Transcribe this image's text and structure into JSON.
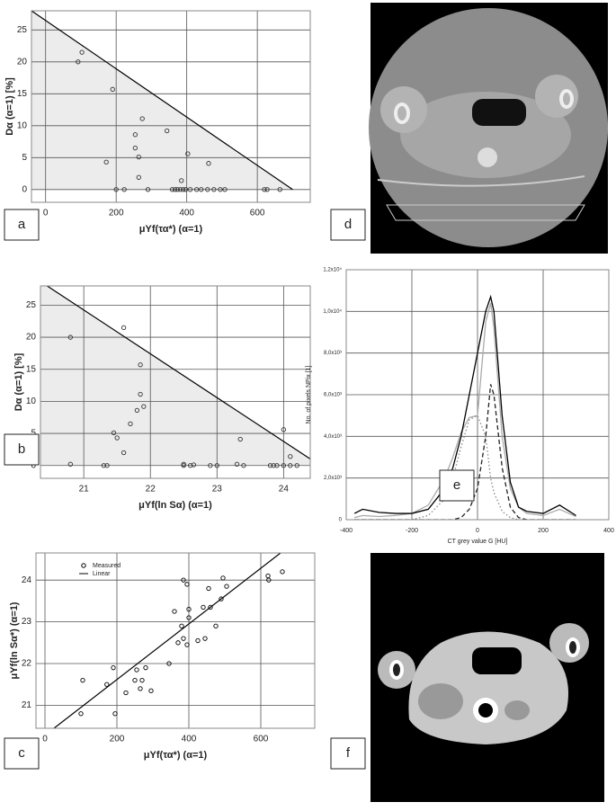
{
  "chart_data": [
    {
      "type": "scatter",
      "panel_label": "a",
      "x_label": "μYf(τα*)   (α=1)",
      "y_label": "Dα   (α=1)   [%]",
      "xlim": [
        -40,
        750
      ],
      "ylim": [
        -2,
        28
      ],
      "xticks": [
        0,
        200,
        400,
        600
      ],
      "yticks": [
        0,
        5,
        10,
        15,
        20,
        25
      ],
      "grid": true,
      "series": [
        {
          "style": "line",
          "fill_below": true,
          "color": "#000000",
          "x": [
            -40,
            700
          ],
          "values": [
            28,
            0
          ]
        },
        {
          "style": "markers",
          "color": "#333333",
          "x": [
            92,
            103,
            172,
            190,
            200,
            223,
            254,
            254,
            264,
            264,
            274,
            290,
            344,
            359,
            367,
            374,
            382,
            385,
            390,
            397,
            403,
            410,
            428,
            441,
            459,
            462,
            477,
            495,
            508,
            620,
            628,
            664
          ],
          "values": [
            20,
            21.5,
            4.3,
            15.7,
            0,
            0,
            8.6,
            6.5,
            5.1,
            1.9,
            11.1,
            0,
            9.2,
            0,
            0,
            0,
            0,
            1.4,
            0,
            0,
            5.6,
            0,
            0,
            0,
            0,
            4.1,
            0,
            0,
            0,
            0,
            0,
            0
          ]
        }
      ]
    },
    {
      "type": "scatter",
      "panel_label": "b",
      "x_label": "μYf(ln Sα)   (α=1)",
      "y_label": "Dα   (α=1)   [%]",
      "xlim": [
        20.35,
        24.4
      ],
      "ylim": [
        -2,
        28
      ],
      "xticks": [
        21,
        22,
        23,
        24
      ],
      "yticks": [
        0,
        5,
        10,
        15,
        20,
        25
      ],
      "grid": true,
      "series": [
        {
          "style": "line",
          "fill_below": true,
          "color": "#000000",
          "x": [
            20.45,
            24.55
          ],
          "values": [
            28,
            0
          ]
        },
        {
          "style": "markers",
          "color": "#333333",
          "x": [
            20.8,
            20.8,
            21.3,
            21.35,
            21.45,
            21.5,
            21.6,
            21.6,
            21.7,
            21.8,
            21.85,
            21.85,
            21.9,
            22.5,
            22.5,
            22.6,
            22.65,
            22.9,
            23.0,
            23.3,
            23.35,
            23.4,
            23.8,
            23.85,
            23.9,
            24.0,
            24.0,
            24.1,
            24.1,
            24.2
          ],
          "values": [
            20,
            0.2,
            0,
            0,
            5.1,
            4.3,
            2,
            21.5,
            6.5,
            8.6,
            11.1,
            15.7,
            9.2,
            0.2,
            0,
            0,
            0.1,
            0,
            0,
            0.2,
            4.1,
            0,
            0,
            0,
            0,
            5.6,
            0,
            1.4,
            0,
            0
          ]
        }
      ]
    },
    {
      "type": "scatter",
      "panel_label": "c",
      "x_label": "μYf(τα*)   (α=1)",
      "y_label": "μYf(ln Sα*)   (α=1)",
      "xlim": [
        -25,
        750
      ],
      "ylim": [
        20.45,
        24.65
      ],
      "xticks": [
        0,
        200,
        400,
        600
      ],
      "yticks": [
        21,
        22,
        23,
        24
      ],
      "grid": true,
      "legend": "top-left",
      "series": [
        {
          "name": "Measured",
          "style": "markers",
          "color": "#000000",
          "x": [
            100,
            105,
            172,
            190,
            195,
            225,
            250,
            255,
            265,
            270,
            280,
            295,
            345,
            360,
            370,
            385,
            380,
            385,
            395,
            400,
            395,
            400,
            425,
            440,
            445,
            455,
            460,
            475,
            490,
            495,
            505,
            620,
            622,
            660
          ],
          "values": [
            20.8,
            21.6,
            21.5,
            21.9,
            20.8,
            21.3,
            21.6,
            21.85,
            21.4,
            21.6,
            21.9,
            21.35,
            22.0,
            23.25,
            22.5,
            22.6,
            22.9,
            24.0,
            23.9,
            23.1,
            22.45,
            23.3,
            22.55,
            23.35,
            22.6,
            23.8,
            23.35,
            22.9,
            23.55,
            24.05,
            23.85,
            24.1,
            24.0,
            24.2
          ]
        },
        {
          "name": "Linear",
          "style": "line",
          "color": "#000000",
          "x": [
            25,
            700
          ],
          "values": [
            20.45,
            24.95
          ]
        }
      ]
    },
    {
      "type": "line",
      "panel_label": "e",
      "x_label": "CT grey value G [HU]",
      "y_label": "No. of pixels NPix [1]",
      "xlim": [
        -400,
        400
      ],
      "ylim": [
        0,
        12000
      ],
      "xticks": [
        -400,
        -200,
        0,
        200,
        400
      ],
      "yticks": [
        0,
        {
          "value": 2000,
          "label": "2,0x10³"
        },
        {
          "value": 4000,
          "label": "4,0x10³"
        },
        {
          "value": 6000,
          "label": "6,0x10³"
        },
        {
          "value": 8000,
          "label": "8,0x10³"
        },
        {
          "value": 10000,
          "label": "1,0x10⁴"
        },
        {
          "value": 12000,
          "label": "1,2x10⁴"
        }
      ],
      "grid": true,
      "x": [
        -375,
        -350,
        -300,
        -250,
        -200,
        -150,
        -100,
        -75,
        -50,
        -25,
        0,
        25,
        40,
        50,
        75,
        100,
        125,
        150,
        200,
        250,
        300
      ],
      "series": [
        {
          "style": "solid",
          "color": "#aaaaaa",
          "values": [
            100,
            200,
            150,
            200,
            300,
            700,
            2000,
            3000,
            4200,
            4900,
            5000,
            9500,
            10400,
            9200,
            4000,
            1500,
            600,
            300,
            200,
            500,
            150
          ]
        },
        {
          "style": "dotted",
          "color": "#888888",
          "values": [
            0,
            0,
            0,
            0,
            0,
            200,
            1000,
            2000,
            3500,
            4800,
            5000,
            4000,
            2000,
            1300,
            400,
            100,
            0,
            0,
            0,
            0,
            0
          ]
        },
        {
          "style": "dashed",
          "color": "#222222",
          "values": [
            0,
            0,
            0,
            0,
            0,
            0,
            0,
            0,
            100,
            500,
            1500,
            4000,
            6500,
            6000,
            2500,
            600,
            100,
            0,
            0,
            0,
            0
          ]
        },
        {
          "style": "solid",
          "color": "#000000",
          "values": [
            300,
            500,
            350,
            300,
            300,
            500,
            1500,
            2500,
            4000,
            6000,
            8000,
            10000,
            10700,
            10000,
            5000,
            1800,
            600,
            400,
            300,
            700,
            200
          ]
        }
      ]
    }
  ],
  "images": [
    {
      "label": "d"
    },
    {
      "label": "f"
    }
  ]
}
